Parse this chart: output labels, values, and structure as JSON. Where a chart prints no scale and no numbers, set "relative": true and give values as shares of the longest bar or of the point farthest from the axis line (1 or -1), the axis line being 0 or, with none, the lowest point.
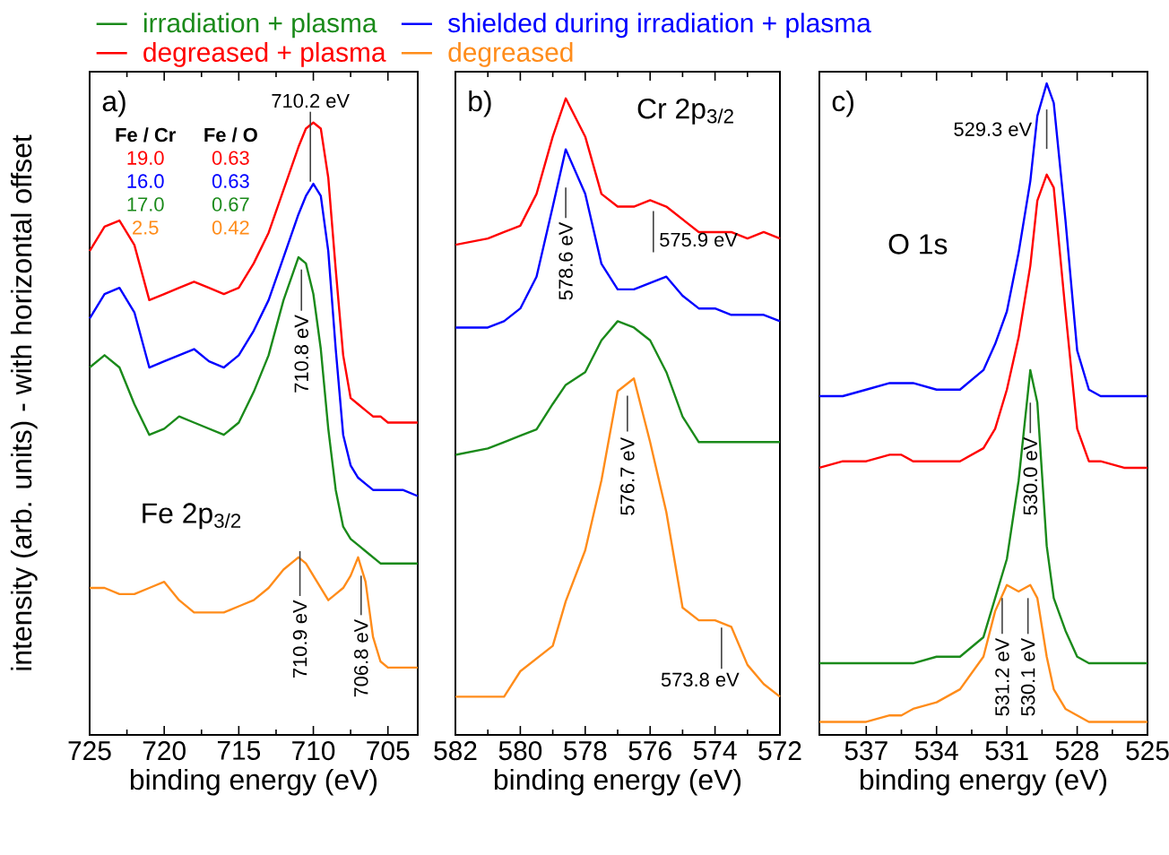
{
  "chart_data": [
    {
      "type": "line",
      "relative": true,
      "xlim": [
        725,
        703
      ],
      "xticks": [
        725,
        720,
        715,
        710,
        705
      ],
      "xlabel": "binding energy (eV)",
      "ylabel": "intensity (arb. units) - with horizontal offset",
      "legend": "top",
      "x": [
        725,
        724,
        723,
        722,
        721,
        720,
        719,
        718,
        717,
        716,
        715,
        714,
        713,
        712,
        711,
        710.5,
        710,
        709.5,
        709,
        708.5,
        708,
        707.5,
        707,
        706.5,
        706,
        705.5,
        705,
        704,
        703
      ],
      "series": [
        {
          "name": "irradiation + plasma",
          "color": "#1a8a1a",
          "values": [
            0.6,
            0.62,
            0.6,
            0.54,
            0.49,
            0.5,
            0.52,
            0.51,
            0.5,
            0.49,
            0.51,
            0.56,
            0.62,
            0.71,
            0.78,
            0.77,
            0.72,
            0.63,
            0.5,
            0.4,
            0.34,
            0.32,
            0.31,
            0.3,
            0.29,
            0.28,
            0.28,
            0.28,
            0.28
          ]
        },
        {
          "name": "shielded during irradiation + plasma",
          "color": "#0000ff",
          "values": [
            0.68,
            0.72,
            0.73,
            0.69,
            0.6,
            0.61,
            0.62,
            0.63,
            0.61,
            0.6,
            0.62,
            0.66,
            0.71,
            0.78,
            0.85,
            0.88,
            0.9,
            0.88,
            0.79,
            0.63,
            0.49,
            0.44,
            0.42,
            0.41,
            0.4,
            0.4,
            0.4,
            0.4,
            0.39
          ]
        },
        {
          "name": "degreased + plasma",
          "color": "#ff0000",
          "values": [
            0.79,
            0.83,
            0.84,
            0.8,
            0.71,
            0.72,
            0.73,
            0.74,
            0.73,
            0.72,
            0.73,
            0.77,
            0.82,
            0.89,
            0.96,
            0.99,
            1.0,
            0.99,
            0.91,
            0.76,
            0.62,
            0.55,
            0.54,
            0.53,
            0.52,
            0.52,
            0.51,
            0.51,
            0.51
          ]
        },
        {
          "name": "degreased",
          "color": "#ff8c1a",
          "values": [
            0.24,
            0.24,
            0.23,
            0.23,
            0.24,
            0.25,
            0.22,
            0.2,
            0.2,
            0.2,
            0.21,
            0.22,
            0.24,
            0.27,
            0.29,
            0.28,
            0.26,
            0.24,
            0.22,
            0.23,
            0.24,
            0.26,
            0.29,
            0.25,
            0.16,
            0.12,
            0.11,
            0.11,
            0.11
          ]
        }
      ],
      "annotations": [
        "a)",
        "Fe 2p$_{3/2}$",
        "Fe / Cr",
        "Fe / O",
        "19.0",
        "0.63",
        "16.0",
        "0.63",
        "17.0",
        "0.67",
        "2.5",
        "0.42",
        {
          "text": "710.2 eV",
          "x": 710.2,
          "y": 1.0
        },
        {
          "text": "710.8 eV",
          "x": 710.8,
          "y": 0.76
        },
        {
          "text": "710.9 eV",
          "x": 710.9,
          "y": 0.3
        },
        {
          "text": "706.8 eV",
          "x": 706.8,
          "y": 0.26
        }
      ]
    },
    {
      "type": "line",
      "relative": true,
      "xlim": [
        582,
        572
      ],
      "xticks": [
        582,
        580,
        578,
        576,
        574,
        572
      ],
      "xlabel": "binding energy (eV)",
      "x": [
        582,
        581,
        580.5,
        580,
        579.5,
        579,
        578.6,
        578,
        577.5,
        577,
        576.5,
        576,
        575.5,
        575,
        574.5,
        574,
        573.5,
        573,
        572.5,
        572
      ],
      "series": [
        {
          "color": "#1a8a1a",
          "values": [
            0.44,
            0.45,
            0.46,
            0.47,
            0.48,
            0.52,
            0.55,
            0.57,
            0.62,
            0.65,
            0.64,
            0.62,
            0.57,
            0.5,
            0.46,
            0.46,
            0.46,
            0.46,
            0.46,
            0.46
          ]
        },
        {
          "color": "#0000ff",
          "values": [
            0.64,
            0.64,
            0.65,
            0.67,
            0.72,
            0.83,
            0.92,
            0.85,
            0.74,
            0.7,
            0.7,
            0.71,
            0.72,
            0.69,
            0.67,
            0.67,
            0.66,
            0.66,
            0.66,
            0.65
          ]
        },
        {
          "color": "#ff0000",
          "values": [
            0.77,
            0.78,
            0.79,
            0.8,
            0.85,
            0.94,
            1.0,
            0.94,
            0.85,
            0.83,
            0.83,
            0.84,
            0.83,
            0.81,
            0.79,
            0.79,
            0.79,
            0.78,
            0.79,
            0.78
          ]
        },
        {
          "color": "#ff8c1a",
          "values": [
            0.06,
            0.06,
            0.06,
            0.1,
            0.12,
            0.14,
            0.21,
            0.29,
            0.4,
            0.54,
            0.56,
            0.46,
            0.35,
            0.2,
            0.18,
            0.18,
            0.17,
            0.11,
            0.08,
            0.06
          ]
        }
      ],
      "annotations": [
        "b)",
        "Cr 2p$_{3/2}$",
        {
          "text": "578.6 eV",
          "x": 578.6,
          "y": 0.86
        },
        {
          "text": "575.9 eV",
          "x": 575.9,
          "y": 0.84
        },
        {
          "text": "576.7 eV",
          "x": 576.7,
          "y": 0.55
        },
        {
          "text": "573.8 eV",
          "x": 573.8,
          "y": 0.18
        }
      ]
    },
    {
      "type": "line",
      "relative": true,
      "xlim": [
        539,
        525
      ],
      "xticks": [
        537,
        534,
        531,
        528,
        525
      ],
      "xlabel": "binding energy (eV)",
      "x": [
        539,
        538,
        537,
        536,
        535.5,
        535,
        534,
        533,
        532,
        531.5,
        531,
        530.5,
        530,
        529.7,
        529.3,
        529,
        528.5,
        528,
        527.5,
        527,
        526,
        525
      ],
      "series": [
        {
          "color": "#1a8a1a",
          "values": [
            0.11,
            0.11,
            0.11,
            0.11,
            0.11,
            0.11,
            0.12,
            0.12,
            0.15,
            0.21,
            0.27,
            0.39,
            0.56,
            0.51,
            0.29,
            0.21,
            0.16,
            0.12,
            0.11,
            0.11,
            0.11,
            0.11
          ]
        },
        {
          "color": "#0000ff",
          "values": [
            0.52,
            0.52,
            0.53,
            0.54,
            0.54,
            0.54,
            0.53,
            0.53,
            0.56,
            0.6,
            0.65,
            0.74,
            0.85,
            0.95,
            1.0,
            0.97,
            0.79,
            0.59,
            0.53,
            0.52,
            0.52,
            0.52
          ]
        },
        {
          "color": "#ff0000",
          "values": [
            0.41,
            0.42,
            0.42,
            0.43,
            0.43,
            0.42,
            0.42,
            0.42,
            0.44,
            0.47,
            0.53,
            0.61,
            0.72,
            0.82,
            0.86,
            0.84,
            0.65,
            0.47,
            0.42,
            0.42,
            0.41,
            0.41
          ]
        },
        {
          "color": "#ff8c1a",
          "values": [
            0.02,
            0.02,
            0.02,
            0.03,
            0.03,
            0.04,
            0.05,
            0.07,
            0.12,
            0.19,
            0.23,
            0.22,
            0.23,
            0.21,
            0.12,
            0.07,
            0.04,
            0.03,
            0.02,
            0.02,
            0.02,
            0.02
          ]
        }
      ],
      "annotations": [
        "c)",
        "O 1s",
        {
          "text": "529.3 eV",
          "x": 529.3,
          "y": 0.96
        },
        {
          "text": "530.0 eV",
          "x": 530.0,
          "y": 0.51
        },
        {
          "text": "531.2 eV",
          "x": 531.2,
          "y": 0.21
        },
        {
          "text": "530.1 eV",
          "x": 530.1,
          "y": 0.21
        }
      ]
    }
  ]
}
